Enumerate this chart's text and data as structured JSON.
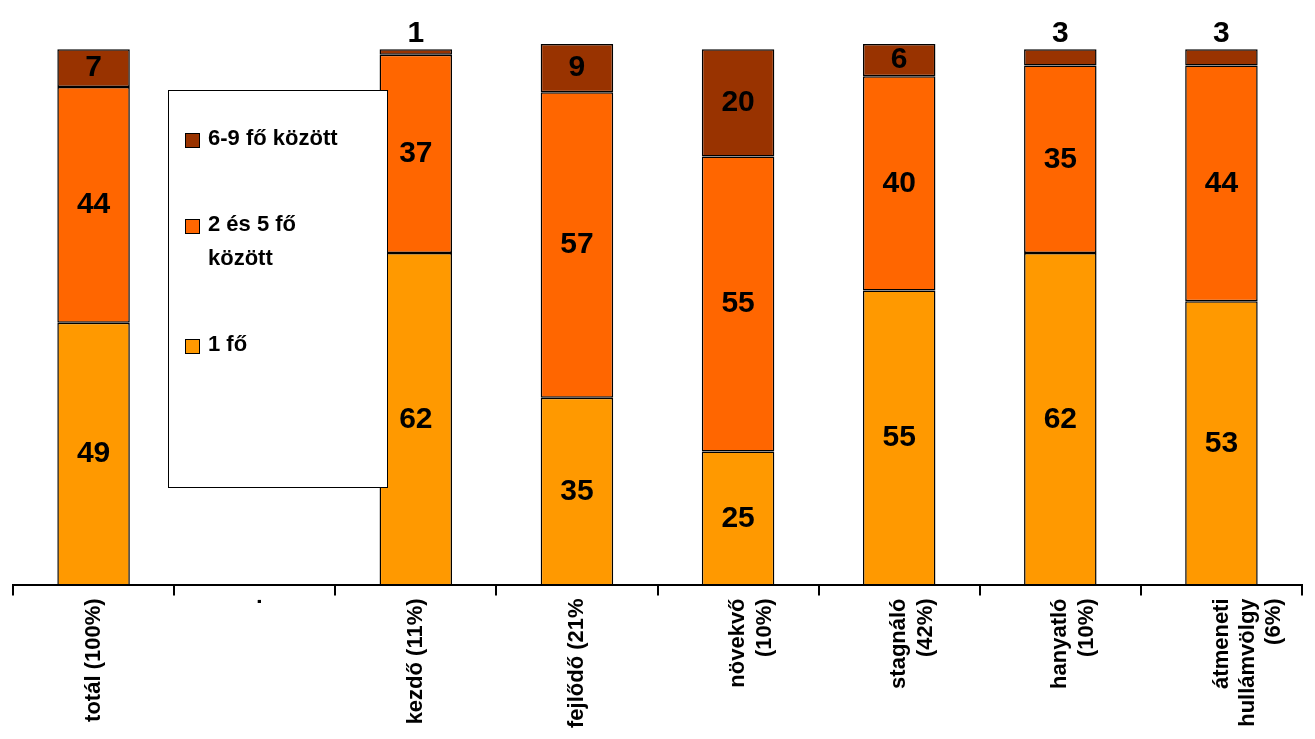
{
  "chart_data": {
    "type": "bar",
    "stacked": true,
    "data_labels": true,
    "legend": "top left",
    "categories": [
      "totál (100%)",
      ".",
      "kezdő (11%)",
      "fejlődő (21%",
      "növekvő\n(10%)",
      "stagnáló\n(42%)",
      "hanyatló\n(10%)",
      "átmeneti\nhullámvölgy\n(6%)"
    ],
    "series": [
      {
        "name": "1 fő",
        "color": "#ff9900",
        "values": [
          49,
          null,
          62,
          35,
          25,
          55,
          62,
          53
        ]
      },
      {
        "name": "2 és 5 fő\nközött",
        "color": "#ff6600",
        "values": [
          44,
          null,
          37,
          57,
          55,
          40,
          35,
          44
        ]
      },
      {
        "name": "6-9 fő között",
        "color": "#993300",
        "values": [
          7,
          null,
          1,
          9,
          20,
          6,
          3,
          3
        ]
      }
    ]
  }
}
